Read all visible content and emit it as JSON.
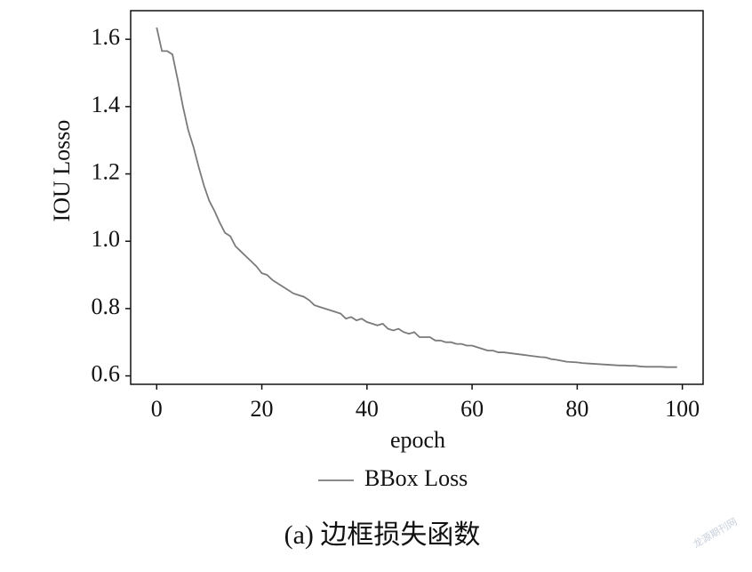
{
  "chart_data": {
    "type": "line",
    "xlabel": "epoch",
    "ylabel": "IOU Losso",
    "caption": "(a) 边框损失函数",
    "watermark": "龙源期刊网",
    "x": [
      0,
      1,
      2,
      3,
      4,
      5,
      6,
      7,
      8,
      9,
      10,
      11,
      12,
      13,
      14,
      15,
      16,
      17,
      18,
      19,
      20,
      21,
      22,
      23,
      24,
      25,
      26,
      27,
      28,
      29,
      30,
      31,
      32,
      33,
      34,
      35,
      36,
      37,
      38,
      39,
      40,
      41,
      42,
      43,
      44,
      45,
      46,
      47,
      48,
      49,
      50,
      51,
      52,
      53,
      54,
      55,
      56,
      57,
      58,
      59,
      60,
      61,
      62,
      63,
      64,
      65,
      66,
      67,
      68,
      69,
      70,
      71,
      72,
      73,
      74,
      75,
      76,
      77,
      78,
      79,
      80,
      81,
      82,
      83,
      84,
      85,
      86,
      87,
      88,
      89,
      90,
      91,
      92,
      93,
      94,
      95,
      96,
      97,
      98,
      99
    ],
    "series": [
      {
        "name": "BBox Loss",
        "color": "#7a7a7a",
        "values": [
          1.635,
          1.565,
          1.565,
          1.555,
          1.48,
          1.4,
          1.33,
          1.28,
          1.22,
          1.165,
          1.12,
          1.09,
          1.055,
          1.025,
          1.015,
          0.985,
          0.97,
          0.955,
          0.94,
          0.925,
          0.905,
          0.9,
          0.885,
          0.875,
          0.865,
          0.855,
          0.845,
          0.84,
          0.835,
          0.825,
          0.81,
          0.805,
          0.8,
          0.795,
          0.79,
          0.785,
          0.77,
          0.775,
          0.765,
          0.77,
          0.76,
          0.755,
          0.75,
          0.755,
          0.74,
          0.735,
          0.74,
          0.73,
          0.725,
          0.73,
          0.715,
          0.715,
          0.715,
          0.705,
          0.705,
          0.7,
          0.7,
          0.695,
          0.695,
          0.69,
          0.69,
          0.685,
          0.68,
          0.675,
          0.675,
          0.67,
          0.67,
          0.668,
          0.666,
          0.664,
          0.662,
          0.66,
          0.658,
          0.656,
          0.655,
          0.65,
          0.648,
          0.645,
          0.642,
          0.641,
          0.64,
          0.638,
          0.637,
          0.636,
          0.635,
          0.634,
          0.633,
          0.632,
          0.631,
          0.631,
          0.63,
          0.63,
          0.628,
          0.627,
          0.627,
          0.627,
          0.627,
          0.626,
          0.626,
          0.626
        ]
      }
    ],
    "xlim": [
      -4.95,
      103.95
    ],
    "ylim": [
      0.575,
      1.685
    ],
    "xticks": [
      0,
      20,
      40,
      60,
      80,
      100
    ],
    "yticks": [
      0.6,
      0.8,
      {
        "value": 1,
        "label": "1.0"
      },
      1.2,
      1.4,
      1.6
    ],
    "grid": false
  }
}
